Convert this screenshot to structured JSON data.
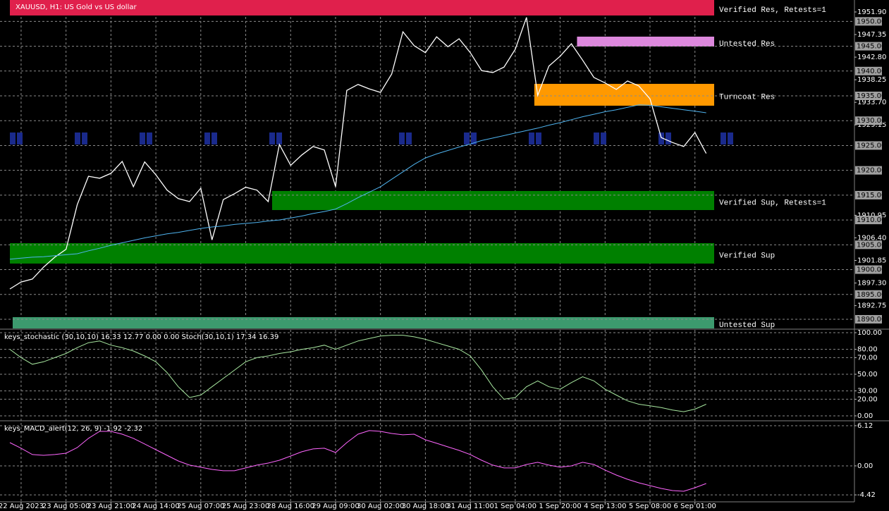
{
  "chart_data": [
    {
      "type": "line",
      "title": "XAUUSD, H1: US Gold vs US dollar",
      "ylim": [
        1888.15,
        1954.31
      ],
      "yticks": [
        {
          "value": 1951.9,
          "label": "1951.90"
        },
        {
          "value": 1947.35,
          "label": "1947.35"
        },
        {
          "value": 1942.8,
          "label": "1942.80"
        },
        {
          "value": 1938.25,
          "label": "1938.25"
        },
        {
          "value": 1933.7,
          "label": "1933.70"
        },
        {
          "value": 1929.15,
          "label": "1929.15"
        },
        {
          "value": 1910.95,
          "label": "1910.95"
        },
        {
          "value": 1906.4,
          "label": "1906.40"
        },
        {
          "value": 1901.85,
          "label": "1901.85"
        },
        {
          "value": 1897.3,
          "label": "1897.30"
        },
        {
          "value": 1892.75,
          "label": "1892.75"
        }
      ],
      "levels": [
        {
          "value": 1950,
          "label": "1950.00"
        },
        {
          "value": 1945,
          "label": "1945.00"
        },
        {
          "value": 1940,
          "label": "1940.00"
        },
        {
          "value": 1935,
          "label": "1935.00"
        },
        {
          "value": 1930,
          "label": "1930.00"
        },
        {
          "value": 1925,
          "label": "1925.00"
        },
        {
          "value": 1920,
          "label": "1920.00"
        },
        {
          "value": 1915,
          "label": "1915.00"
        },
        {
          "value": 1910,
          "label": "1910.00"
        },
        {
          "value": 1905,
          "label": "1905.00"
        },
        {
          "value": 1900,
          "label": "1900.00"
        },
        {
          "value": 1895,
          "label": "1895.00"
        },
        {
          "value": 1890,
          "label": "1890.00"
        }
      ],
      "grid": true,
      "zones": [
        {
          "label": "Verified Res, Retests=1",
          "color": "#e0204c",
          "range": [
            1951.19,
            1954.31
          ],
          "start": 0
        },
        {
          "label": "Untested Res",
          "color": "#dd88dd",
          "range": [
            1944.94,
            1946.93
          ],
          "start": 50.5
        },
        {
          "label": "Turncoat Res",
          "color": "#ff9900",
          "range": [
            1933.02,
            1937.42
          ],
          "start": 46.7
        },
        {
          "label": "Verified Sup, Retests=1",
          "color": "#008000",
          "range": [
            1912.0,
            1915.84
          ],
          "start": 23.35
        },
        {
          "label": "Verified Sup",
          "color": "#008000",
          "range": [
            1901.22,
            1905.33
          ],
          "start": 0
        },
        {
          "label": "Untested Sup",
          "color": "#3c9a6e",
          "range": [
            1888.15,
            1890.43
          ],
          "start": 0.25
        }
      ],
      "series": [
        {
          "color": "#ffffff",
          "values": [
            1896.1,
            1897.5,
            1898.1,
            1900.5,
            1902.5,
            1904.1,
            1913.1,
            1918.8,
            1918.4,
            1919.4,
            1921.8,
            1916.7,
            1921.7,
            1919.1,
            1916.0,
            1914.3,
            1913.7,
            1916.4,
            1906.0,
            1914.1,
            1915.3,
            1916.6,
            1916.0,
            1913.7,
            1925.2,
            1921.0,
            1923.1,
            1924.8,
            1924.1,
            1916.7,
            1936.1,
            1937.3,
            1936.4,
            1935.7,
            1939.4,
            1947.9,
            1945.1,
            1943.7,
            1946.9,
            1944.9,
            1946.5,
            1943.7,
            1940.1,
            1939.7,
            1940.8,
            1944.4,
            1950.8,
            1935.1,
            1941.0,
            1943.0,
            1945.5,
            1942.2,
            1938.7,
            1937.6,
            1936.3,
            1938.0,
            1937.0,
            1934.4,
            1926.6,
            1925.6,
            1924.8,
            1927.6,
            1923.4
          ]
        },
        {
          "color": "#4fb4f0",
          "values": [
            1902.1,
            1902.3,
            1902.5,
            1902.6,
            1902.8,
            1903.0,
            1903.2,
            1903.8,
            1904.3,
            1904.9,
            1905.4,
            1905.9,
            1906.4,
            1906.8,
            1907.2,
            1907.5,
            1907.9,
            1908.3,
            1908.6,
            1908.8,
            1909.1,
            1909.3,
            1909.5,
            1909.8,
            1910.0,
            1910.4,
            1910.8,
            1911.3,
            1911.7,
            1912.2,
            1913.3,
            1914.5,
            1915.6,
            1916.7,
            1918.2,
            1919.7,
            1921.2,
            1922.5,
            1923.3,
            1924.0,
            1924.7,
            1925.3,
            1926.0,
            1926.5,
            1927.0,
            1927.5,
            1928.0,
            1928.5,
            1929.1,
            1929.6,
            1930.2,
            1930.8,
            1931.3,
            1931.8,
            1932.2,
            1932.7,
            1933.2,
            1933.1,
            1932.8,
            1932.5,
            1932.2,
            1931.9,
            1931.6
          ]
        }
      ]
    },
    {
      "type": "line",
      "title": "keys_stochastic (30,10,10) 16.33 12.77 0.00 0.00 Stoch(30,10,1) 17.34 16.39",
      "ylim": [
        -5.1,
        103.4
      ],
      "yticks": [
        {
          "value": 100,
          "label": "100.00"
        },
        {
          "value": 80,
          "label": "80.00"
        },
        {
          "value": 70,
          "label": "70.00"
        },
        {
          "value": 50,
          "label": "50.00"
        },
        {
          "value": 30,
          "label": "30.00"
        },
        {
          "value": 20,
          "label": "20.00"
        },
        {
          "value": 0,
          "label": "0.00"
        }
      ],
      "grid": true,
      "series": [
        {
          "color": "#a8e8a0",
          "values": [
            80,
            70,
            62,
            65,
            70,
            75,
            82,
            88,
            90,
            85,
            82,
            78,
            72,
            65,
            52,
            35,
            22,
            25,
            35,
            45,
            55,
            65,
            70,
            72,
            75,
            77,
            80,
            82,
            85,
            80,
            85,
            90,
            93,
            96,
            97,
            97,
            95,
            92,
            88,
            84,
            80,
            72,
            55,
            35,
            20,
            22,
            35,
            42,
            35,
            32,
            40,
            47,
            42,
            32,
            25,
            18,
            14,
            12,
            10,
            7,
            5,
            8,
            14
          ]
        }
      ]
    },
    {
      "type": "line",
      "title": "keys_MACD_alert(12, 26, 9) -1.92 -2.32",
      "ylim": [
        -5.48,
        6.76
      ],
      "yticks": [
        6.12,
        {
          "value": 0,
          "label": "0.00"
        },
        -4.42
      ],
      "grid": true,
      "categories": [
        null,
        "22 Aug 2023",
        null,
        null,
        null,
        "23 Aug 05:00",
        null,
        null,
        null,
        "23 Aug 21:00",
        null,
        null,
        null,
        "24 Aug 14:00",
        null,
        null,
        null,
        "25 Aug 07:00",
        null,
        null,
        null,
        "25 Aug 23:00",
        null,
        null,
        null,
        "28 Aug 16:00",
        null,
        null,
        null,
        "29 Aug 09:00",
        null,
        null,
        null,
        "30 Aug 02:00",
        null,
        null,
        null,
        "30 Aug 18:00",
        null,
        null,
        null,
        "31 Aug 11:00",
        null,
        null,
        null,
        "1 Sep 04:00",
        null,
        null,
        null,
        "1 Sep 20:00",
        null,
        null,
        null,
        "4 Sep 13:00",
        null,
        null,
        null,
        "5 Sep 08:00",
        null,
        null,
        null,
        "6 Sep 01:00",
        null
      ],
      "series": [
        {
          "color": "#ff66ff",
          "values": [
            3.54,
            2.69,
            1.72,
            1.61,
            1.72,
            1.93,
            2.79,
            4.19,
            5.26,
            5.26,
            4.83,
            4.19,
            3.33,
            2.47,
            1.61,
            0.75,
            0.11,
            -0.21,
            -0.54,
            -0.75,
            -0.75,
            -0.32,
            0.11,
            0.43,
            0.86,
            1.5,
            2.15,
            2.58,
            2.69,
            2.04,
            3.54,
            4.83,
            5.37,
            5.26,
            4.94,
            4.73,
            4.83,
            3.97,
            3.44,
            2.9,
            2.36,
            1.72,
            0.86,
            0.11,
            -0.32,
            -0.32,
            0.21,
            0.54,
            0.11,
            -0.21,
            0,
            0.54,
            0.21,
            -0.64,
            -1.4,
            -2.04,
            -2.58,
            -3.01,
            -3.44,
            -3.76,
            -3.87,
            -3.33,
            -2.69
          ]
        }
      ]
    }
  ]
}
